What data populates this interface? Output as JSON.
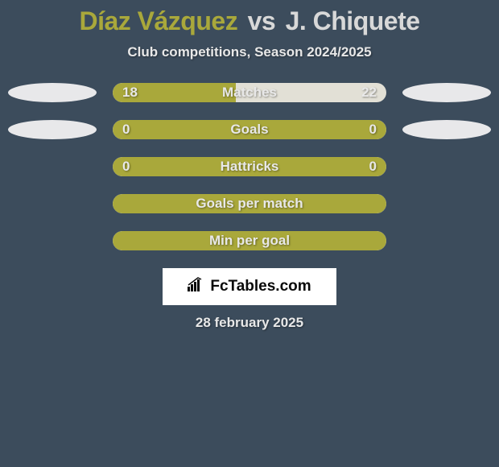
{
  "title": {
    "player1": "Díaz Vázquez",
    "vs": "vs",
    "player2": "J. Chiquete"
  },
  "subtitle": "Club competitions, Season 2024/2025",
  "colors": {
    "background": "#3c4c5c",
    "accent": "#a9a83b",
    "bar_bg": "#e2e0d6",
    "oval": "#e8e8ea",
    "text_light": "#e8e8e8",
    "white": "#ffffff"
  },
  "stats": [
    {
      "label": "Matches",
      "left_val": "18",
      "right_val": "22",
      "left_pct": 45,
      "right_pct": 55,
      "show_ovals": true,
      "full": false
    },
    {
      "label": "Goals",
      "left_val": "0",
      "right_val": "0",
      "left_pct": 0,
      "right_pct": 0,
      "show_ovals": true,
      "full": true
    },
    {
      "label": "Hattricks",
      "left_val": "0",
      "right_val": "0",
      "left_pct": 0,
      "right_pct": 0,
      "show_ovals": false,
      "full": true
    },
    {
      "label": "Goals per match",
      "left_val": "",
      "right_val": "",
      "left_pct": 0,
      "right_pct": 0,
      "show_ovals": false,
      "full": true
    },
    {
      "label": "Min per goal",
      "left_val": "",
      "right_val": "",
      "left_pct": 0,
      "right_pct": 0,
      "show_ovals": false,
      "full": true
    }
  ],
  "logo": "FcTables.com",
  "date": "28 february 2025",
  "typography": {
    "title_fontsize": 32,
    "subtitle_fontsize": 17,
    "bar_label_fontsize": 17
  }
}
